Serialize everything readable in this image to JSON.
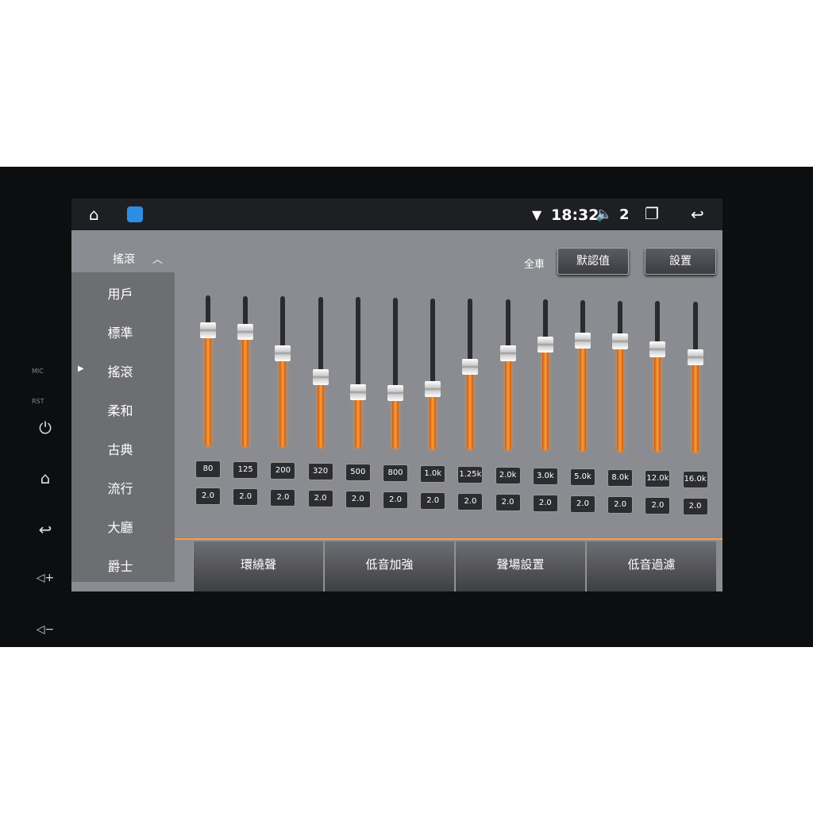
{
  "hardware": {
    "mic_label": "MIC",
    "rst_label": "RST",
    "buttons": [
      "power-icon",
      "home-icon",
      "back-icon",
      "volume-up-icon",
      "volume-down-icon"
    ]
  },
  "status_bar": {
    "time": "18:32",
    "volume_level": "2",
    "icons": [
      "home-icon",
      "app-icon",
      "wifi-icon",
      "volume-icon",
      "recent-apps-icon",
      "back-icon"
    ]
  },
  "header": {
    "preset": "搖滾",
    "scope": "全車",
    "default_button": "默認值",
    "settings_button": "設置"
  },
  "preset_menu": {
    "items": [
      "用戶",
      "標準",
      "搖滾",
      "柔和",
      "古典",
      "流行",
      "大廳",
      "爵士"
    ],
    "selected": "搖滾"
  },
  "equalizer": {
    "accent": "#ff9a3a",
    "bands": [
      {
        "freq": "80",
        "gain": "2.0",
        "level": 0.77
      },
      {
        "freq": "125",
        "gain": "2.0",
        "level": 0.76
      },
      {
        "freq": "200",
        "gain": "2.0",
        "level": 0.62
      },
      {
        "freq": "320",
        "gain": "2.0",
        "level": 0.47
      },
      {
        "freq": "500",
        "gain": "2.0",
        "level": 0.37
      },
      {
        "freq": "800",
        "gain": "2.0",
        "level": 0.37
      },
      {
        "freq": "1.0k",
        "gain": "2.0",
        "level": 0.4
      },
      {
        "freq": "1.25k",
        "gain": "2.0",
        "level": 0.55
      },
      {
        "freq": "2.0k",
        "gain": "2.0",
        "level": 0.64
      },
      {
        "freq": "3.0k",
        "gain": "2.0",
        "level": 0.7
      },
      {
        "freq": "5.0k",
        "gain": "2.0",
        "level": 0.73
      },
      {
        "freq": "8.0k",
        "gain": "2.0",
        "level": 0.73
      },
      {
        "freq": "12.0k",
        "gain": "2.0",
        "level": 0.68
      },
      {
        "freq": "16.0k",
        "gain": "2.0",
        "level": 0.63
      }
    ]
  },
  "tabs": [
    "環繞聲",
    "低音加強",
    "聲場設置",
    "低音過濾"
  ]
}
